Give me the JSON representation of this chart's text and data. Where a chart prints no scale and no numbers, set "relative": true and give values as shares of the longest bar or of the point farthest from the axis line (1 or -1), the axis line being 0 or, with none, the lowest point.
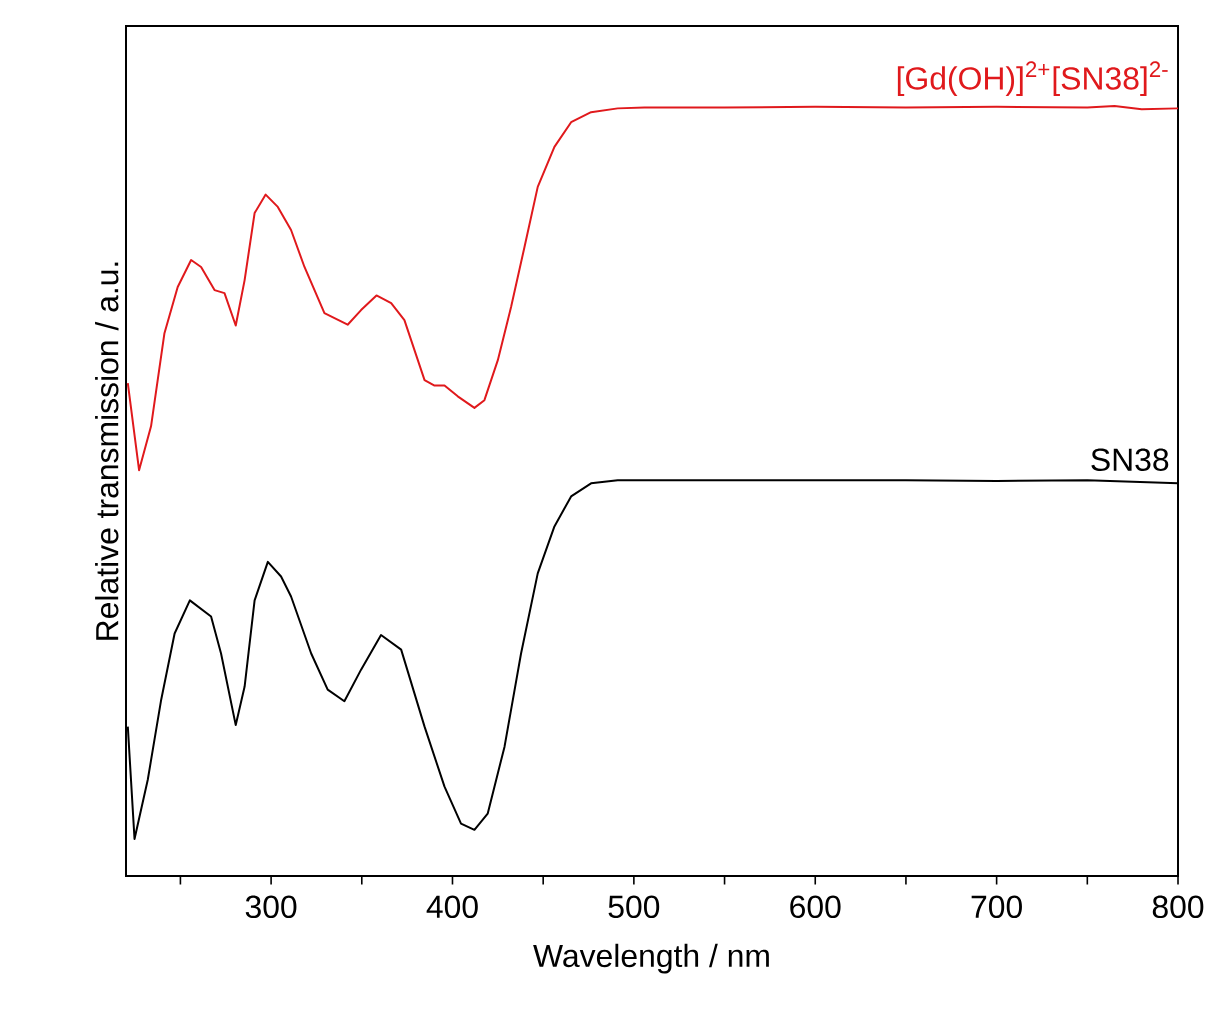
{
  "chart_data": {
    "type": "line",
    "relative": true,
    "xlabel": "Wavelength / nm",
    "ylabel": "Relative transmission / a.u.",
    "xlim": [
      220,
      800
    ],
    "xticks": [
      {
        "value": 250,
        "label": null
      },
      300,
      {
        "value": 350,
        "label": null
      },
      400,
      {
        "value": 450,
        "label": null
      },
      500,
      {
        "value": 550,
        "label": null
      },
      600,
      {
        "value": 650,
        "label": null
      },
      700,
      {
        "value": 750,
        "label": null
      },
      800
    ],
    "legend": false,
    "grid": false,
    "marker": "none",
    "line_style": "solid",
    "series": [
      {
        "name": "[Gd(OH)]$^{2+}$[SN38]$^{2-}$",
        "color": "#e0191c",
        "x": [
          221,
          227.2,
          233.8,
          241.2,
          248.5,
          255.9,
          261.4,
          268.8,
          274.3,
          280.5,
          285.4,
          290.9,
          297,
          303.7,
          311,
          318.4,
          329.4,
          342.2,
          349.6,
          358.1,
          366.2,
          373.5,
          384.6,
          390.1,
          395.6,
          402.9,
          412.1,
          417.6,
          425,
          432.3,
          439.7,
          447,
          456.2,
          465.4,
          476.4,
          491.1,
          505.8,
          550,
          600,
          650,
          700,
          750,
          765,
          780,
          800
        ],
        "values": [
          0.64,
          0.527,
          0.584,
          0.705,
          0.765,
          0.8,
          0.791,
          0.761,
          0.757,
          0.715,
          0.774,
          0.861,
          0.885,
          0.869,
          0.839,
          0.791,
          0.731,
          0.716,
          0.735,
          0.754,
          0.744,
          0.722,
          0.644,
          0.637,
          0.637,
          0.623,
          0.608,
          0.618,
          0.67,
          0.739,
          0.817,
          0.895,
          0.947,
          0.979,
          0.992,
          0.997,
          0.998,
          0.998,
          0.999,
          0.998,
          0.999,
          0.998,
          1.0,
          0.996,
          0.997
        ]
      },
      {
        "name": "SN38",
        "color": "#000000",
        "x": [
          221,
          224.7,
          232,
          239.4,
          246.8,
          255.2,
          266.9,
          272.4,
          280.5,
          285.4,
          290.9,
          298.2,
          305.5,
          311,
          322.1,
          331.2,
          340.4,
          349.6,
          360.6,
          371.7,
          384.6,
          395.6,
          404.7,
          412.1,
          419.4,
          428.7,
          437.8,
          447,
          456.2,
          465.4,
          476.4,
          491.1,
          550,
          600,
          650,
          700,
          750,
          800
        ],
        "values": [
          0.194,
          0.048,
          0.125,
          0.229,
          0.315,
          0.358,
          0.337,
          0.289,
          0.196,
          0.246,
          0.358,
          0.408,
          0.389,
          0.363,
          0.289,
          0.242,
          0.227,
          0.268,
          0.313,
          0.294,
          0.194,
          0.116,
          0.068,
          0.06,
          0.081,
          0.168,
          0.289,
          0.393,
          0.454,
          0.493,
          0.51,
          0.514,
          0.514,
          0.514,
          0.514,
          0.513,
          0.514,
          0.51
        ]
      }
    ]
  }
}
